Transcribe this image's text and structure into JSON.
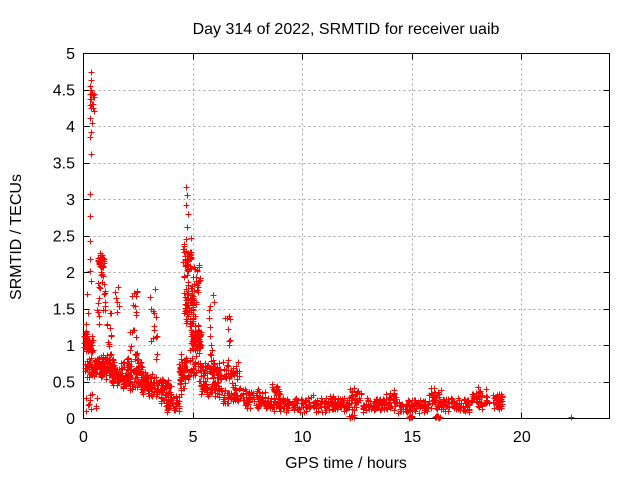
{
  "chart_data": {
    "type": "scatter",
    "title": "Day 314 of 2022, SRMTID for receiver uaib",
    "xlabel": "GPS time / hours",
    "ylabel": "SRMTID / TECUs",
    "xlim": [
      0,
      24
    ],
    "ylim": [
      0,
      5
    ],
    "xticks": [
      0,
      5,
      10,
      15,
      20
    ],
    "yticks": [
      0,
      0.5,
      1,
      1.5,
      2,
      2.5,
      3,
      3.5,
      4,
      4.5,
      5
    ],
    "grid": true,
    "legend": "none",
    "marker": {
      "shape": "plus",
      "color": "#ff0000",
      "size": 7
    },
    "seed": 314,
    "points": [
      [
        0.32,
        4.75
      ],
      [
        0.36,
        4.64
      ],
      [
        0.3,
        4.56
      ],
      [
        0.3,
        4.12
      ],
      [
        0.37,
        4.05
      ],
      [
        0.33,
        3.93
      ],
      [
        0.3,
        3.85
      ],
      [
        0.32,
        3.63
      ],
      [
        0.3,
        3.07
      ],
      [
        0.29,
        2.77
      ],
      [
        0.31,
        2.43
      ],
      [
        0.3,
        2.18
      ],
      [
        0.28,
        2.02
      ],
      [
        0.33,
        1.88
      ],
      [
        0.14,
        1.7
      ],
      [
        0.2,
        1.44
      ],
      [
        0.12,
        1.3
      ],
      [
        4.68,
        3.17
      ],
      [
        4.74,
        3.06
      ],
      [
        4.67,
        2.93
      ],
      [
        4.77,
        2.8
      ],
      [
        4.7,
        2.63
      ],
      [
        22.25,
        0.02
      ]
    ],
    "clusters": [
      [
        0.28,
        0.48,
        4.15,
        4.52,
        18,
        "c"
      ],
      [
        0.02,
        0.18,
        0.95,
        1.22,
        22,
        "c"
      ],
      [
        0.1,
        0.42,
        0.88,
        1.15,
        40,
        "c"
      ],
      [
        0.05,
        0.35,
        0.5,
        0.9,
        25,
        "c"
      ],
      [
        0.65,
        0.95,
        2.0,
        2.32,
        30,
        "c"
      ],
      [
        0.62,
        1.0,
        1.3,
        2.0,
        22,
        "u"
      ],
      [
        0.35,
        0.85,
        0.5,
        0.95,
        55,
        "c"
      ],
      [
        0.85,
        1.4,
        0.5,
        0.92,
        65,
        "c"
      ],
      [
        1.05,
        1.25,
        0.95,
        1.5,
        10,
        "u"
      ],
      [
        1.45,
        1.62,
        1.4,
        1.9,
        6,
        "u"
      ],
      [
        1.3,
        2.15,
        0.35,
        0.78,
        85,
        "c"
      ],
      [
        2.1,
        2.45,
        0.85,
        1.92,
        18,
        "u"
      ],
      [
        2.0,
        2.65,
        0.35,
        0.9,
        75,
        "c"
      ],
      [
        2.6,
        3.15,
        0.28,
        0.65,
        65,
        "c"
      ],
      [
        3.0,
        3.35,
        0.72,
        1.97,
        15,
        "u"
      ],
      [
        3.15,
        3.65,
        0.28,
        0.62,
        45,
        "c"
      ],
      [
        3.5,
        4.0,
        0.18,
        0.55,
        40,
        "c"
      ],
      [
        3.75,
        4.4,
        0.05,
        0.35,
        40,
        "c"
      ],
      [
        4.35,
        4.62,
        0.3,
        1.0,
        40,
        "c"
      ],
      [
        4.55,
        4.92,
        1.85,
        2.55,
        40,
        "c"
      ],
      [
        4.58,
        5.05,
        1.25,
        1.88,
        65,
        "c"
      ],
      [
        4.85,
        5.35,
        0.85,
        1.35,
        75,
        "c"
      ],
      [
        5.0,
        5.3,
        1.4,
        2.12,
        22,
        "u"
      ],
      [
        4.4,
        5.65,
        0.45,
        0.9,
        70,
        "c"
      ],
      [
        5.3,
        6.2,
        0.28,
        0.55,
        45,
        "c"
      ],
      [
        5.7,
        5.95,
        0.6,
        1.77,
        26,
        "u"
      ],
      [
        5.85,
        6.3,
        0.5,
        0.8,
        25,
        "c"
      ],
      [
        6.45,
        6.7,
        1.0,
        1.47,
        8,
        "u"
      ],
      [
        6.35,
        7.15,
        0.45,
        0.85,
        35,
        "c"
      ],
      [
        6.2,
        7.3,
        0.18,
        0.45,
        55,
        "c"
      ],
      [
        7.3,
        8.3,
        0.1,
        0.42,
        65,
        "c"
      ],
      [
        8.3,
        12.1,
        0.07,
        0.32,
        230,
        "c"
      ],
      [
        8.55,
        9.0,
        0.3,
        0.48,
        14,
        "c"
      ],
      [
        12.1,
        12.7,
        0.1,
        0.45,
        35,
        "c"
      ],
      [
        12.7,
        13.8,
        0.07,
        0.3,
        70,
        "c"
      ],
      [
        13.8,
        14.3,
        0.1,
        0.4,
        32,
        "c"
      ],
      [
        14.3,
        15.7,
        0.07,
        0.28,
        85,
        "c"
      ],
      [
        15.7,
        16.3,
        0.1,
        0.45,
        38,
        "c"
      ],
      [
        16.3,
        17.6,
        0.07,
        0.3,
        78,
        "c"
      ],
      [
        17.6,
        18.4,
        0.1,
        0.45,
        42,
        "c"
      ],
      [
        18.4,
        19.15,
        0.1,
        0.4,
        42,
        "c"
      ],
      [
        12.12,
        12.38,
        0.0,
        0.05,
        8,
        "c"
      ],
      [
        14.82,
        15.08,
        0.0,
        0.05,
        8,
        "c"
      ],
      [
        16.02,
        16.28,
        0.0,
        0.05,
        8,
        "c"
      ],
      [
        0.02,
        0.6,
        0.08,
        0.35,
        12,
        "u"
      ]
    ]
  },
  "colors": {
    "background": "#ffffff",
    "axis": "#000000",
    "grid": "#a6a6a6",
    "marker": "#ff0000",
    "text": "#000000"
  }
}
